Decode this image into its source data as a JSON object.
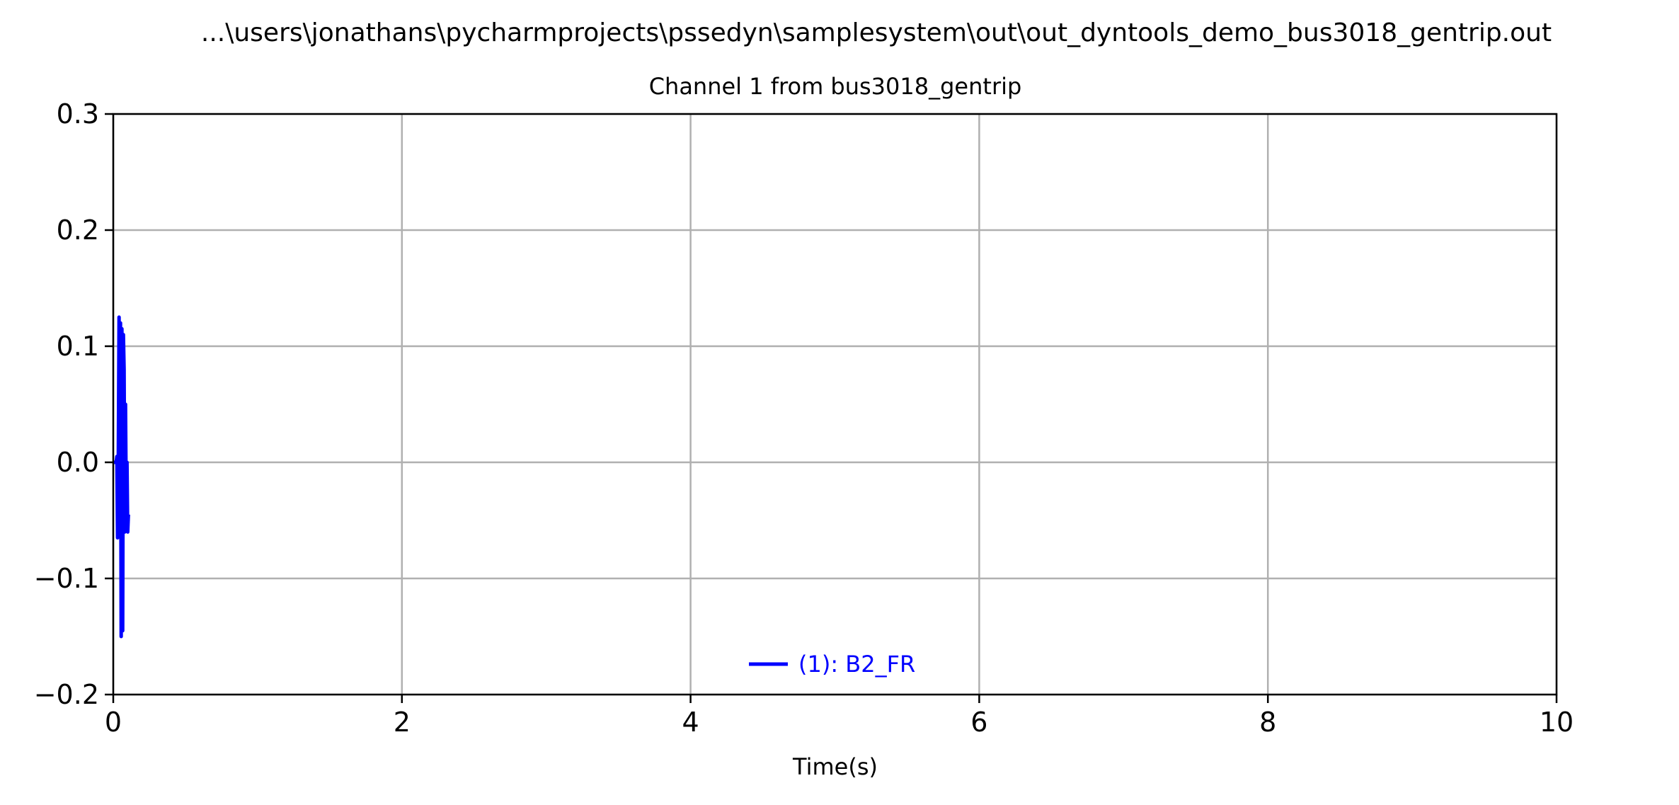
{
  "chart_data": {
    "type": "line",
    "title": "...\\users\\jonathans\\pycharmprojects\\pssedyn\\samplesystem\\out\\out_dyntools_demo_bus3018_gentrip.out",
    "subtitle": "Channel 1 from bus3018_gentrip",
    "xlabel": "Time(s)",
    "ylabel": "",
    "xlim": [
      0,
      10
    ],
    "ylim": [
      -0.2,
      0.3
    ],
    "x_ticks": [
      0,
      2,
      4,
      6,
      8,
      10
    ],
    "x_tick_labels": [
      "0",
      "2",
      "4",
      "6",
      "8",
      "10"
    ],
    "y_ticks": [
      -0.2,
      -0.1,
      0.0,
      0.1,
      0.2,
      0.3
    ],
    "y_tick_labels": [
      "−0.2",
      "−0.1",
      "0.0",
      "0.1",
      "0.2",
      "0.3"
    ],
    "grid": true,
    "legend_position": "lower center",
    "series": [
      {
        "name": "(1): B2_FR",
        "color": "#0000ff",
        "x": [
          0.0,
          0.01,
          0.02,
          0.025,
          0.03,
          0.035,
          0.04,
          0.045,
          0.05,
          0.055,
          0.06,
          0.065,
          0.07,
          0.075,
          0.08,
          0.085,
          0.09,
          0.095,
          0.1,
          0.105,
          0.11
        ],
        "y": [
          0.0,
          0.0,
          0.0,
          0.005,
          -0.065,
          0.0,
          0.125,
          -0.05,
          0.12,
          -0.15,
          0.115,
          -0.145,
          0.11,
          0.08,
          -0.06,
          0.05,
          -0.045,
          0.0,
          -0.06,
          -0.045,
          -0.045
        ]
      }
    ]
  }
}
